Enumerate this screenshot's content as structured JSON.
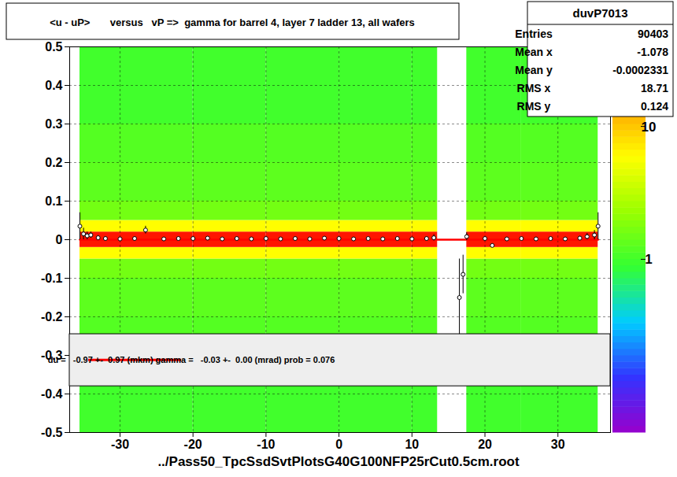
{
  "chart_data": {
    "type": "heatmap",
    "title": "<u - uP>       versus   vP =>  gamma for barrel 4, layer 7 ladder 13, all wafers",
    "x_label": "../Pass50_TpcSsdSvtPlotsG40G100NFP25rCut0.5cm.root",
    "xlim": [
      -36.9,
      37.2
    ],
    "ylim": [
      -0.5,
      0.5
    ],
    "xticks": [
      -30,
      -20,
      -10,
      0,
      10,
      20,
      30
    ],
    "yticks": [
      -0.5,
      -0.4,
      -0.3,
      -0.2,
      -0.1,
      0,
      0.1,
      0.2,
      0.3,
      0.4,
      0.5
    ],
    "grid": true,
    "cells": {
      "x_edges": [
        -35.5,
        -30,
        -20,
        -10,
        0,
        10,
        13.5,
        17.5,
        25,
        35.5
      ],
      "y_edges": [
        -0.5,
        -0.4,
        -0.3,
        -0.2,
        -0.1,
        -0.05,
        -0.02,
        0.02,
        0.05,
        0.1,
        0.2,
        0.3,
        0.4,
        0.5
      ],
      "values": [
        [
          1,
          1,
          1,
          1,
          1,
          1,
          null,
          1,
          1
        ],
        [
          1,
          1,
          1,
          1,
          1,
          1,
          null,
          1,
          1
        ],
        [
          1.2,
          1.2,
          1.2,
          1.2,
          1.2,
          1.2,
          null,
          1.2,
          1.2
        ],
        [
          1.3,
          1.3,
          1.3,
          1.3,
          1.3,
          1.3,
          null,
          1.3,
          1.3
        ],
        [
          1.6,
          1.6,
          1.6,
          1.6,
          1.6,
          1.6,
          null,
          1.6,
          1.6
        ],
        [
          6,
          6,
          6,
          6,
          6,
          6,
          null,
          6,
          6
        ],
        [
          35,
          35,
          35,
          35,
          35,
          35,
          null,
          35,
          35
        ],
        [
          6,
          6,
          6,
          6,
          6,
          6,
          null,
          6,
          6
        ],
        [
          1.6,
          1.6,
          1.6,
          1.6,
          1.6,
          1.6,
          null,
          1.6,
          1.6
        ],
        [
          1.3,
          1.3,
          1.3,
          1.3,
          1.3,
          1.3,
          null,
          1.3,
          1.3
        ],
        [
          1.2,
          1.2,
          1.2,
          1.2,
          1.2,
          1.2,
          null,
          1.2,
          1.2
        ],
        [
          1,
          1,
          1,
          1,
          1,
          1,
          null,
          1,
          1
        ],
        [
          1,
          1,
          1,
          1,
          1,
          1,
          null,
          1,
          1
        ]
      ]
    },
    "colorbar": {
      "zlim": [
        0.05,
        40
      ],
      "zticks": [
        1,
        10
      ],
      "log": true,
      "colors": [
        "#9900cc",
        "#3333ff",
        "#00ccff",
        "#33ff33",
        "#99ff00",
        "#ffff00",
        "#ff9900",
        "#ff0000"
      ]
    },
    "profile": {
      "marker": "circle",
      "color": "#000000",
      "x": [
        -35.5,
        -35,
        -34.5,
        -34,
        -33,
        -32,
        -30,
        -28,
        -26.5,
        -24,
        -22,
        -20,
        -18,
        -16,
        -14,
        -12,
        -10,
        -8,
        -6,
        -4,
        -2,
        0,
        2,
        4,
        6,
        8,
        10,
        12,
        13,
        16.5,
        17,
        17.5,
        20,
        21,
        23,
        25,
        27,
        29,
        31,
        33,
        34,
        35,
        35.5
      ],
      "y": [
        0.035,
        0.015,
        0.01,
        0.012,
        0.005,
        0.003,
        0.002,
        0.003,
        0.025,
        0.002,
        0.003,
        0.003,
        0.004,
        0.002,
        0.003,
        0.002,
        0.003,
        0.002,
        0.003,
        0.002,
        0.004,
        0.003,
        0.002,
        0.003,
        0.002,
        0.003,
        0.002,
        0.003,
        0.005,
        -0.15,
        -0.09,
        0.008,
        0.003,
        -0.015,
        0.002,
        0.003,
        0.002,
        0.003,
        0.002,
        0.004,
        0.008,
        0.012,
        0.035
      ],
      "errors": [
        0.035,
        0.015,
        0.01,
        0.008,
        0.006,
        0.005,
        0.004,
        0.004,
        0.01,
        0.004,
        0.004,
        0.004,
        0.004,
        0.004,
        0.004,
        0.004,
        0.004,
        0.004,
        0.004,
        0.004,
        0.004,
        0.004,
        0.004,
        0.004,
        0.004,
        0.004,
        0.004,
        0.004,
        0.008,
        0.1,
        0.05,
        0.01,
        0.005,
        0.005,
        0.004,
        0.004,
        0.004,
        0.004,
        0.004,
        0.005,
        0.008,
        0.012,
        0.035
      ]
    },
    "fit": {
      "x": [
        -35.5,
        35.5
      ],
      "y": [
        0,
        0
      ],
      "color": "#ff0000",
      "label": "du =   -0.97 +-  0.97 (mkm) gamma =   -0.03 +-  0.00 (mrad) prob = 0.076"
    },
    "stats": {
      "name": "duvP7013",
      "rows": [
        {
          "label": "Entries",
          "value": 90403
        },
        {
          "label": "Mean x",
          "value": -1.078
        },
        {
          "label": "Mean y",
          "value": -0.0002331
        },
        {
          "label": "RMS x",
          "value": 18.71
        },
        {
          "label": "RMS y",
          "value": 0.124
        }
      ]
    }
  }
}
